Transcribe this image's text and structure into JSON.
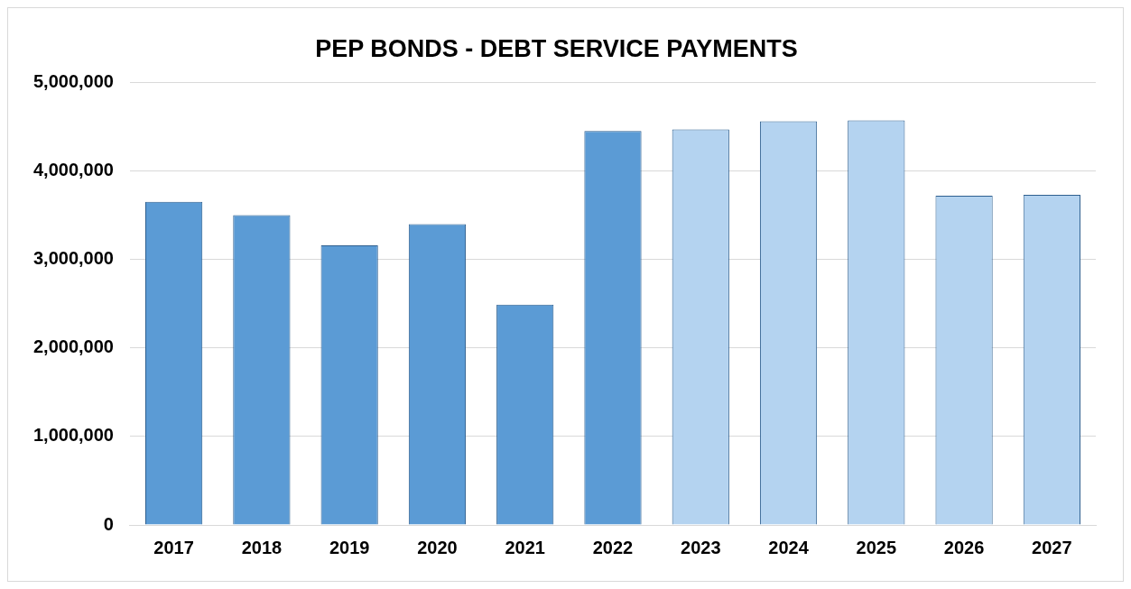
{
  "chart_data": {
    "type": "bar",
    "title": "PEP BONDS - DEBT SERVICE PAYMENTS",
    "categories": [
      "2017",
      "2018",
      "2019",
      "2020",
      "2021",
      "2022",
      "2023",
      "2024",
      "2025",
      "2026",
      "2027"
    ],
    "values": [
      3650000,
      3500000,
      3160000,
      3400000,
      2490000,
      4450000,
      4470000,
      4560000,
      4570000,
      3720000,
      3730000
    ],
    "colors": [
      "#5b9bd5",
      "#5b9bd5",
      "#5b9bd5",
      "#5b9bd5",
      "#5b9bd5",
      "#5b9bd5",
      "#b4d3f0",
      "#b4d3f0",
      "#b4d3f0",
      "#b4d3f0",
      "#b4d3f0"
    ],
    "ylim": [
      0,
      5000000
    ],
    "yticks": [
      0,
      {
        "value": 1000000,
        "label": "1,000,000"
      },
      {
        "value": 2000000,
        "label": "2,000,000"
      },
      {
        "value": 3000000,
        "label": "3,000,000"
      },
      {
        "value": 4000000,
        "label": "4,000,000"
      },
      {
        "value": 5000000,
        "label": "5,000,000"
      }
    ],
    "grid": "y",
    "legend": false
  }
}
